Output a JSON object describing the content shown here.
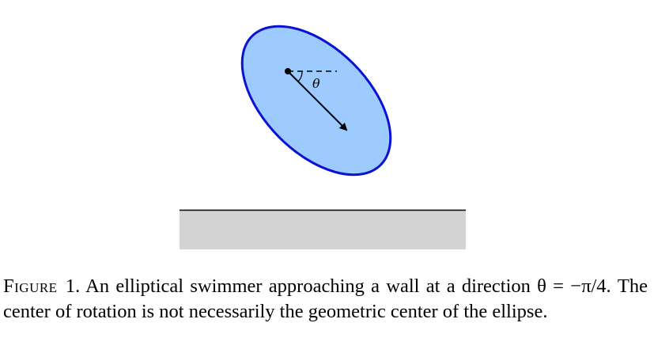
{
  "figure": {
    "angle_label": "θ",
    "colors": {
      "ellipse_fill": "#9ecbff",
      "ellipse_stroke": "#0b12d6",
      "wall_fill": "#d3d3d3",
      "wall_line": "#000000",
      "arrow": "#000000"
    }
  },
  "caption": {
    "label": "Figure",
    "number": "1.",
    "text": "An elliptical swimmer approaching a wall at a direction θ = −π/4. The center of rotation is not necessarily the geometric center of the ellipse."
  }
}
